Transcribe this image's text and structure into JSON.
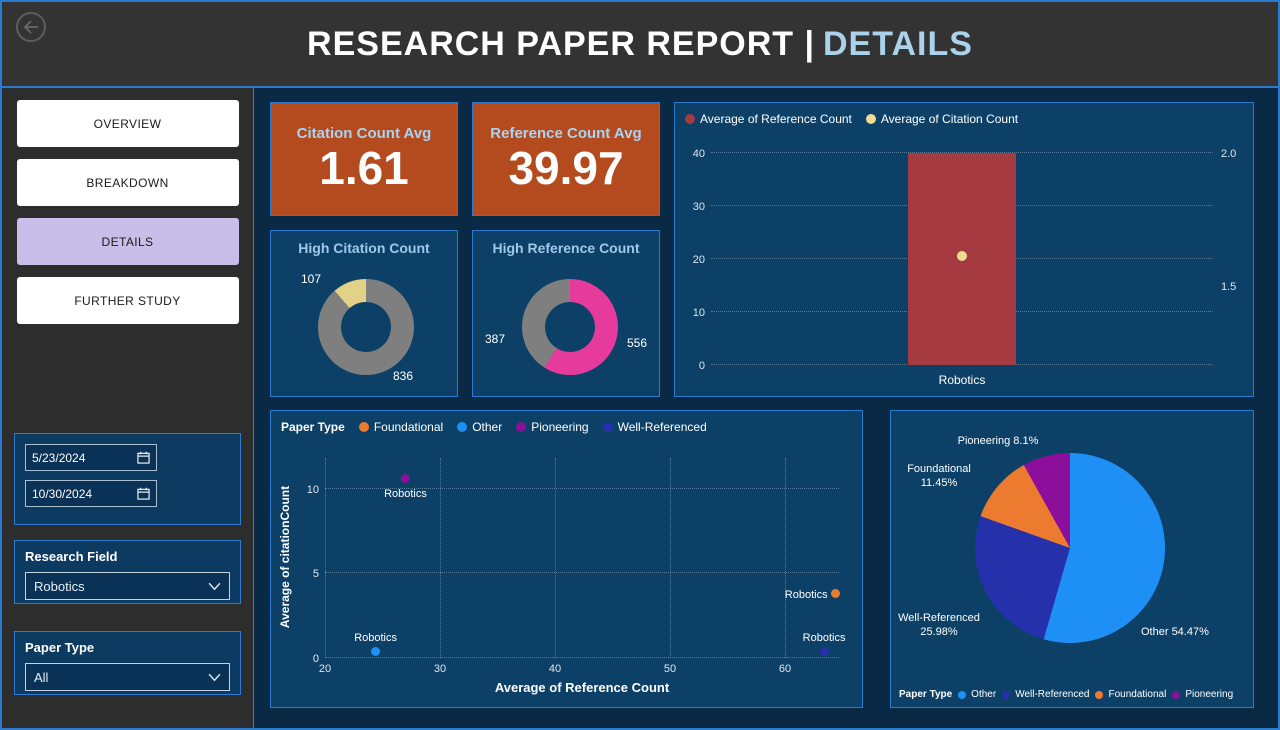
{
  "theme": {
    "accent_border": "#2b7bd0",
    "header_bg": "#333333",
    "sidebar_bg": "#2d2d2d",
    "canvas_bg": "#0a2945",
    "card_bg": "#0d4066",
    "kpi_bg": "#b34b1e",
    "nav_active_bg": "#c9bde9",
    "title_accent_color": "#aad2ea",
    "card_title_color": "#9fc9ea"
  },
  "header": {
    "title_main": "RESEARCH PAPER REPORT |",
    "title_accent": "DETAILS"
  },
  "sidebar": {
    "nav": [
      {
        "label": "OVERVIEW",
        "active": false
      },
      {
        "label": "BREAKDOWN",
        "active": false
      },
      {
        "label": "DETAILS",
        "active": true
      },
      {
        "label": "FURTHER STUDY",
        "active": false
      }
    ],
    "dates": {
      "from": "5/23/2024",
      "to": "10/30/2024"
    },
    "research_field": {
      "label": "Research Field",
      "value": "Robotics"
    },
    "paper_type": {
      "label": "Paper Type",
      "value": "All"
    }
  },
  "kpis": [
    {
      "title": "Citation Count Avg",
      "value": "1.61"
    },
    {
      "title": "Reference Count Avg",
      "value": "39.97"
    }
  ],
  "chart_data": [
    {
      "id": "combo",
      "type": "bar",
      "categories": [
        "Robotics"
      ],
      "legend_position": "top",
      "grid": true,
      "legend": [
        {
          "name": "Average of Reference Count",
          "color": "#a53b40"
        },
        {
          "name": "Average of Citation Count",
          "color": "#eedc91"
        }
      ],
      "bar_series": {
        "name": "Average of Reference Count",
        "axis": "left",
        "values": [
          39.97
        ],
        "color": "#a53b40"
      },
      "dot_series": {
        "name": "Average of Citation Count",
        "axis": "right",
        "values": [
          1.61
        ],
        "color": "#eedc91"
      },
      "left_axis": {
        "min": 0,
        "max": 40,
        "ticks": [
          0,
          10,
          20,
          30,
          40
        ]
      },
      "right_axis": {
        "min": 1.2,
        "max": 2.0,
        "ticks": [
          {
            "v": 1.5,
            "t": "1.5"
          },
          {
            "v": 2.0,
            "t": "2.0"
          }
        ]
      }
    },
    {
      "id": "high_citation",
      "type": "pie",
      "donut": true,
      "title": "High Citation Count",
      "slices": [
        {
          "label": "836",
          "value": 836,
          "color": "#7f7f7f"
        },
        {
          "label": "107",
          "value": 107,
          "color": "#e2d186"
        }
      ]
    },
    {
      "id": "high_reference",
      "type": "pie",
      "donut": true,
      "title": "High Reference Count",
      "slices": [
        {
          "label": "556",
          "value": 556,
          "color": "#e63a9c"
        },
        {
          "label": "387",
          "value": 387,
          "color": "#7f7f7f"
        }
      ]
    },
    {
      "id": "scatter",
      "type": "scatter",
      "legend_title": "Paper Type",
      "legend_position": "top",
      "grid": true,
      "xlabel": "Average of Reference Count",
      "ylabel": "Average of citationCount",
      "x_axis": {
        "min": 20,
        "max": 64.7,
        "ticks": [
          20,
          30,
          40,
          50,
          60
        ]
      },
      "y_axis": {
        "min": 0,
        "max": 11.8,
        "ticks": [
          0,
          5,
          10
        ]
      },
      "series": [
        {
          "name": "Foundational",
          "color": "#ec7b30",
          "points": [
            {
              "x": 64.4,
              "y": 3.8,
              "label": "Robotics",
              "label_pos": "left"
            }
          ]
        },
        {
          "name": "Other",
          "color": "#1e90f5",
          "points": [
            {
              "x": 24.4,
              "y": 0.4,
              "label": "Robotics",
              "label_pos": "above"
            }
          ]
        },
        {
          "name": "Pioneering",
          "color": "#8c0f9c",
          "points": [
            {
              "x": 27.0,
              "y": 10.6,
              "label": "Robotics",
              "label_pos": "below"
            }
          ]
        },
        {
          "name": "Well-Referenced",
          "color": "#2431aa",
          "points": [
            {
              "x": 63.4,
              "y": 0.4,
              "label": "Robotics",
              "label_pos": "above"
            }
          ]
        }
      ]
    },
    {
      "id": "paper_type_pie",
      "type": "pie",
      "legend_title": "Paper Type",
      "legend_position": "bottom",
      "slices": [
        {
          "label": "Other",
          "value": 54.47,
          "display": "Other 54.47%",
          "color": "#1e90f5"
        },
        {
          "label": "Well-Referenced",
          "value": 25.98,
          "display": "Well-Referenced\n25.98%",
          "color": "#2431aa"
        },
        {
          "label": "Foundational",
          "value": 11.45,
          "display": "Foundational\n11.45%",
          "color": "#ec7b30"
        },
        {
          "label": "Pioneering",
          "value": 8.1,
          "display": "Pioneering 8.1%",
          "color": "#8c0f9c"
        }
      ]
    }
  ]
}
